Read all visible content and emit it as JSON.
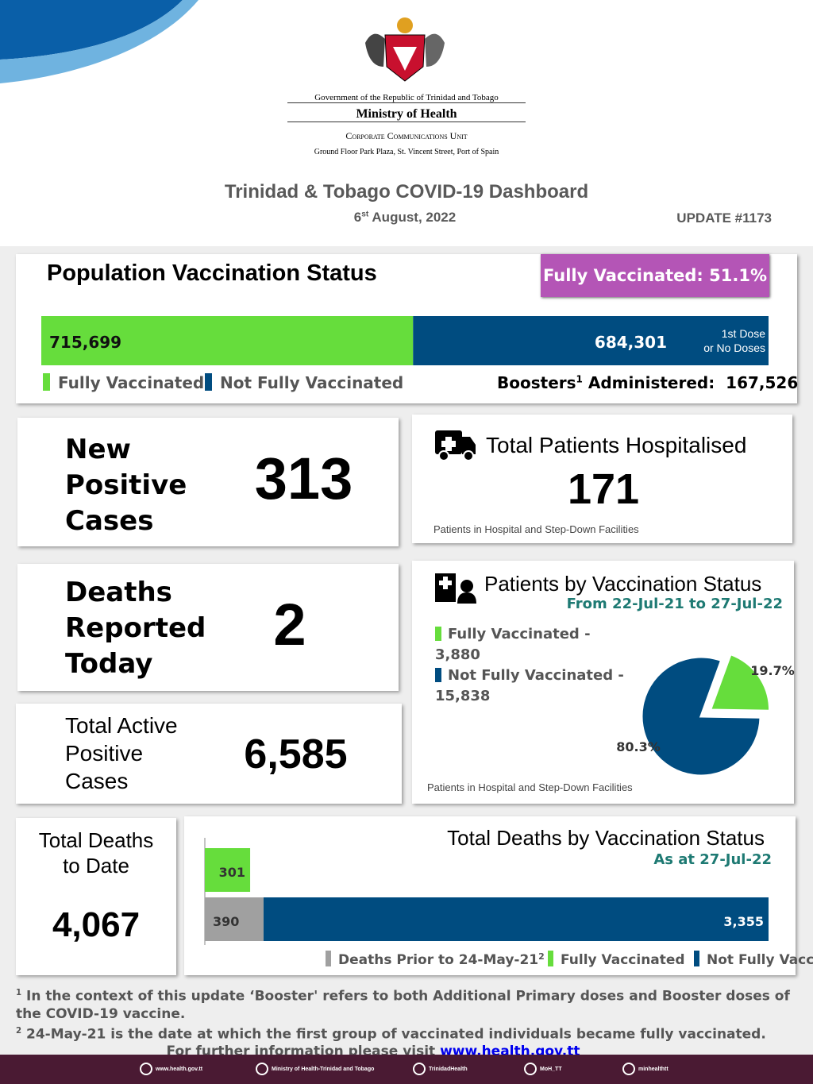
{
  "header": {
    "government": "Government of the Republic of Trinidad and Tobago",
    "ministry": "Ministry of Health",
    "unit": "Corporate Communications Unit",
    "address": "Ground Floor Park Plaza, St. Vincent Street, Port of Spain"
  },
  "title": "Trinidad & Tobago COVID-19 Dashboard",
  "date": {
    "day": "6",
    "suffix": "st",
    "rest": "August, 2022"
  },
  "update": "UPDATE #1173",
  "vaccination": {
    "title": "Population Vaccination Status",
    "badge": "Fully Vaccinated: 51.1%",
    "series": [
      {
        "name": "Fully Vaccinated",
        "color": "#66dd3c",
        "value": 715699,
        "value_label": "715,699"
      },
      {
        "name": "Not Fully Vaccinated",
        "color": "#004c80",
        "value": 684301,
        "value_label": "684,301"
      }
    ],
    "bar_note": [
      "1st Dose",
      "or No Doses"
    ],
    "boosters": {
      "label": "Boosters",
      "sup": "1",
      "rest": "Administered:",
      "value": "167,526"
    }
  },
  "new_cases": {
    "label": [
      "New",
      "Positive",
      "Cases"
    ],
    "value": "313"
  },
  "hospitalised": {
    "title": "Total Patients Hospitalised",
    "value": "171",
    "note": "Patients in Hospital and Step-Down Facilities"
  },
  "deaths_today": {
    "label": [
      "Deaths",
      "Reported",
      "Today"
    ],
    "value": "2"
  },
  "active": {
    "label": [
      "Total Active",
      "Positive",
      "Cases"
    ],
    "value": "6,585"
  },
  "patients_status": {
    "title": "Patients by Vaccination Status",
    "period": "From 22-Jul-21  to 27-Jul-22",
    "legend": [
      "Fully Vaccinated  - 3,880",
      "Not Fully Vaccinated  - 15,838"
    ],
    "pie": {
      "values": [
        19.7,
        80.3
      ],
      "value_labels": [
        "19.7%",
        "80.3%"
      ],
      "colors": [
        "#66dd3c",
        "#004c80"
      ]
    },
    "note": "Patients in Hospital and Step-Down Facilities"
  },
  "total_deaths": {
    "label": [
      "Total Deaths",
      "to Date"
    ],
    "value": "4,067"
  },
  "deaths_by_status": {
    "title": "Total Deaths by Vaccination Status",
    "subtitle": "As at 27-Jul-22",
    "bars": [
      {
        "name": "Deaths Prior to 24-May-21",
        "sup": "2",
        "color": "#a0a0a0",
        "value": 390
      },
      {
        "name": "Fully Vaccinated",
        "color": "#66dd3c",
        "value": 301
      },
      {
        "name": "Not Fully Vaccinated",
        "color": "#004c80",
        "value": 3355,
        "value_label": "3,355"
      }
    ]
  },
  "footnotes": [
    {
      "sup": "1",
      "text": "In the context of this update ‘Booster' refers to both Additional Primary doses and Booster doses of the COVID-19 vaccine."
    },
    {
      "sup": "2",
      "text": "24-May-21 is the date at which the first group of vaccinated individuals became fully vaccinated."
    }
  ],
  "info": {
    "text": "For further information please visit",
    "link": "www.health.gov.tt"
  },
  "footer": [
    "www.health.gov.tt",
    "Ministry of Health-Trinidad and Tobago",
    "TrinidadHealth",
    "MoH_TT",
    "minhealthtt"
  ]
}
